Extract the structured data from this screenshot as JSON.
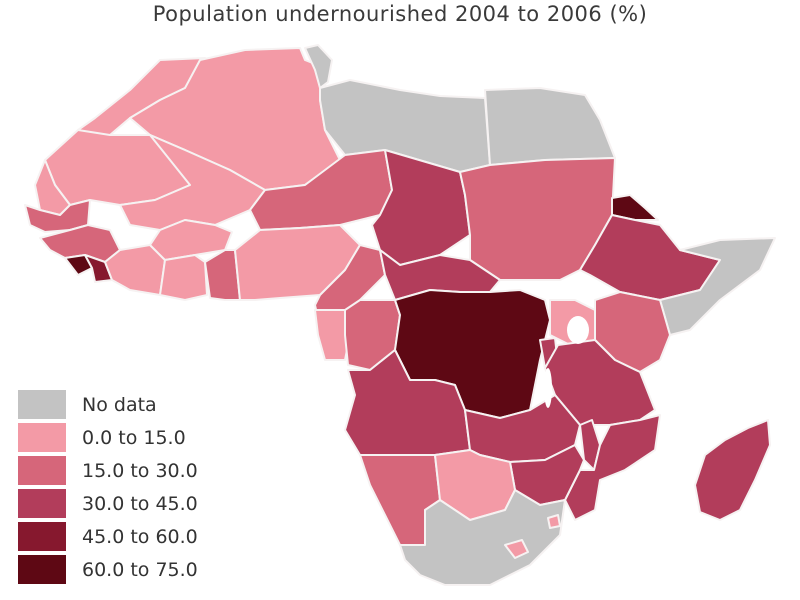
{
  "title": "Population undernourished 2004 to 2006 (%)",
  "colors": {
    "no_data": "#c3c3c3",
    "c0": "#f39aa6",
    "c1": "#d6667a",
    "c2": "#b23d5b",
    "c3": "#86182e",
    "c4": "#5e0814"
  },
  "legend": [
    {
      "label": "No data",
      "color": "#c3c3c3"
    },
    {
      "label": "0.0 to 15.0",
      "color": "#f39aa6"
    },
    {
      "label": "15.0 to 30.0",
      "color": "#d6667a"
    },
    {
      "label": "30.0 to 45.0",
      "color": "#b23d5b"
    },
    {
      "label": "45.0 to 60.0",
      "color": "#86182e"
    },
    {
      "label": "60.0 to 75.0",
      "color": "#5e0814"
    }
  ]
}
